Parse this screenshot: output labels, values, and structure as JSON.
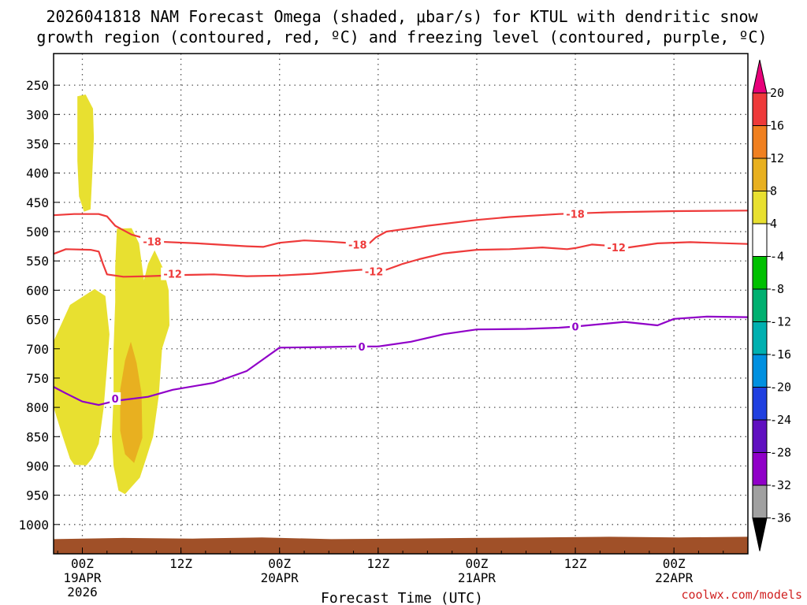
{
  "chart_data": {
    "type": "time-height cross section",
    "title_line1": "2026041818 NAM Forecast Omega (shaded, μbar/s) for KTUL with dendritic snow",
    "title_line2": "growth region (contoured, red, ºC) and freezing level (contoured, purple, ºC)",
    "xlabel": "Forecast Time (UTC)",
    "credit": "coolwx.com/models",
    "x_range_hours": [
      -3.5,
      81
    ],
    "x_ticks": [
      {
        "h": 0,
        "lines": [
          "00Z",
          "19APR",
          "2026"
        ]
      },
      {
        "h": 12,
        "lines": [
          "12Z"
        ]
      },
      {
        "h": 24,
        "lines": [
          "00Z",
          "20APR"
        ]
      },
      {
        "h": 36,
        "lines": [
          "12Z"
        ]
      },
      {
        "h": 48,
        "lines": [
          "00Z",
          "21APR"
        ]
      },
      {
        "h": 60,
        "lines": [
          "12Z"
        ]
      },
      {
        "h": 72,
        "lines": [
          "00Z",
          "22APR"
        ]
      }
    ],
    "y_range_hpa": [
      196,
      1050
    ],
    "y_ticks": [
      250,
      300,
      350,
      400,
      450,
      500,
      550,
      600,
      650,
      700,
      750,
      800,
      850,
      900,
      950,
      1000
    ],
    "y_tick_labels": [
      "250",
      "300",
      "350",
      "400",
      "450",
      "500",
      "550",
      "600",
      "650",
      "700",
      "750",
      "800",
      "850",
      "900",
      "950",
      "1000"
    ],
    "colorbar": {
      "labels": [
        "20",
        "16",
        "12",
        "8",
        "4",
        "-4",
        "-8",
        "-12",
        "-16",
        "-20",
        "-24",
        "-28",
        "-32",
        "-36"
      ],
      "colors": [
        "#e8007a",
        "#ee3a3a",
        "#f08020",
        "#e8b020",
        "#e8e030",
        "#ffffff",
        "#00c000",
        "#00b070",
        "#00b0b0",
        "#0090e0",
        "#2040e0",
        "#6010c0",
        "#9000c8",
        "#a0a0a0",
        "#000000"
      ]
    },
    "contours": [
      {
        "name": "dgz-top",
        "label": "-18",
        "color": "#ee3a3a",
        "label_at": [
          [
            8.5,
            517
          ],
          [
            33.5,
            522
          ],
          [
            60,
            470
          ]
        ],
        "points": [
          [
            -3.5,
            472
          ],
          [
            -1,
            470
          ],
          [
            2,
            470
          ],
          [
            3,
            474
          ],
          [
            4,
            490
          ],
          [
            6,
            505
          ],
          [
            9,
            517
          ],
          [
            14,
            520
          ],
          [
            20,
            525
          ],
          [
            22,
            526
          ],
          [
            24,
            519
          ],
          [
            27,
            515
          ],
          [
            30,
            517
          ],
          [
            33,
            520
          ],
          [
            34,
            525
          ],
          [
            35,
            519
          ],
          [
            35.7,
            510
          ],
          [
            37,
            500
          ],
          [
            42,
            490
          ],
          [
            48,
            480
          ],
          [
            52,
            475
          ],
          [
            58,
            470
          ],
          [
            64,
            467
          ],
          [
            72,
            465
          ],
          [
            81,
            464
          ]
        ]
      },
      {
        "name": "dgz-bottom",
        "label": "-12",
        "color": "#ee3a3a",
        "label_at": [
          [
            11,
            572
          ],
          [
            35.5,
            568
          ],
          [
            65,
            527
          ]
        ],
        "points": [
          [
            -3.5,
            538
          ],
          [
            -2,
            530
          ],
          [
            1,
            531
          ],
          [
            2,
            534
          ],
          [
            2.5,
            555
          ],
          [
            3,
            573
          ],
          [
            5,
            577
          ],
          [
            8,
            576
          ],
          [
            12,
            574
          ],
          [
            16,
            573
          ],
          [
            20,
            576
          ],
          [
            24,
            575
          ],
          [
            28,
            572
          ],
          [
            32,
            567
          ],
          [
            34,
            565
          ],
          [
            35.5,
            567
          ],
          [
            37,
            565
          ],
          [
            39,
            555
          ],
          [
            41,
            547
          ],
          [
            44,
            537
          ],
          [
            48,
            531
          ],
          [
            52,
            530
          ],
          [
            56,
            527
          ],
          [
            59,
            530
          ],
          [
            60,
            528
          ],
          [
            62,
            522
          ],
          [
            64,
            524
          ],
          [
            66,
            528
          ],
          [
            70,
            520
          ],
          [
            74,
            518
          ],
          [
            81,
            521
          ]
        ]
      },
      {
        "name": "freezing-level",
        "label": "0",
        "color": "#9000c8",
        "label_at": [
          [
            4,
            785
          ],
          [
            34,
            696
          ],
          [
            60,
            662
          ]
        ],
        "points": [
          [
            -3.5,
            765
          ],
          [
            -2,
            776
          ],
          [
            0,
            790
          ],
          [
            2,
            796
          ],
          [
            4,
            789
          ],
          [
            8,
            782
          ],
          [
            11,
            770
          ],
          [
            16,
            758
          ],
          [
            20,
            738
          ],
          [
            22,
            718
          ],
          [
            24,
            698
          ],
          [
            30,
            697
          ],
          [
            33,
            696
          ],
          [
            36,
            696
          ],
          [
            40,
            688
          ],
          [
            44,
            675
          ],
          [
            48,
            667
          ],
          [
            54,
            666
          ],
          [
            58,
            664
          ],
          [
            60,
            662
          ],
          [
            66,
            654
          ],
          [
            70,
            660
          ],
          [
            72,
            649
          ],
          [
            76,
            645
          ],
          [
            81,
            646
          ]
        ]
      }
    ],
    "omega_regions": [
      {
        "value": 4,
        "color": "#e8e030",
        "polygon": [
          [
            -0.6,
            269
          ],
          [
            0.4,
            266
          ],
          [
            1.3,
            290
          ],
          [
            1.4,
            340
          ],
          [
            1.2,
            405
          ],
          [
            1.0,
            462
          ],
          [
            0.2,
            466
          ],
          [
            -0.4,
            440
          ],
          [
            -0.6,
            380
          ],
          [
            -0.6,
            320
          ]
        ]
      },
      {
        "value": 4,
        "color": "#e8e030",
        "polygon": [
          [
            -3.5,
            687
          ],
          [
            -1.5,
            625
          ],
          [
            1.5,
            598
          ],
          [
            2.8,
            610
          ],
          [
            3.3,
            675
          ],
          [
            3.0,
            730
          ],
          [
            2.6,
            800
          ],
          [
            2.0,
            862
          ],
          [
            1.2,
            887
          ],
          [
            0.5,
            899
          ],
          [
            -1.0,
            898
          ],
          [
            -1.5,
            888
          ],
          [
            -2.5,
            845
          ],
          [
            -3.5,
            800
          ]
        ]
      },
      {
        "value": 4,
        "color": "#e8e030",
        "polygon": [
          [
            4.2,
            495
          ],
          [
            6.0,
            494
          ],
          [
            6.9,
            520
          ],
          [
            7.5,
            583
          ],
          [
            8.0,
            555
          ],
          [
            8.8,
            532
          ],
          [
            9.9,
            565
          ],
          [
            10.5,
            600
          ],
          [
            10.6,
            660
          ],
          [
            9.7,
            700
          ],
          [
            9.3,
            780
          ],
          [
            8.6,
            850
          ],
          [
            7.7,
            890
          ],
          [
            7.0,
            920
          ],
          [
            5.2,
            948
          ],
          [
            4.4,
            942
          ],
          [
            3.8,
            900
          ],
          [
            3.6,
            850
          ],
          [
            3.8,
            780
          ],
          [
            3.8,
            700
          ],
          [
            4.0,
            620
          ],
          [
            4.0,
            560
          ]
        ]
      },
      {
        "value": 8,
        "color": "#e8b020",
        "polygon": [
          [
            5.9,
            688
          ],
          [
            6.6,
            724
          ],
          [
            7.2,
            776
          ],
          [
            7.3,
            852
          ],
          [
            6.3,
            895
          ],
          [
            5.2,
            880
          ],
          [
            4.6,
            840
          ],
          [
            4.6,
            770
          ],
          [
            5.2,
            720
          ]
        ]
      }
    ],
    "terrain": {
      "color": "#a05028",
      "label": "surface",
      "pressures_hpa": [
        1025,
        1023,
        1024,
        1022,
        1025,
        1024,
        1023,
        1022,
        1021,
        1022,
        1021
      ]
    }
  }
}
